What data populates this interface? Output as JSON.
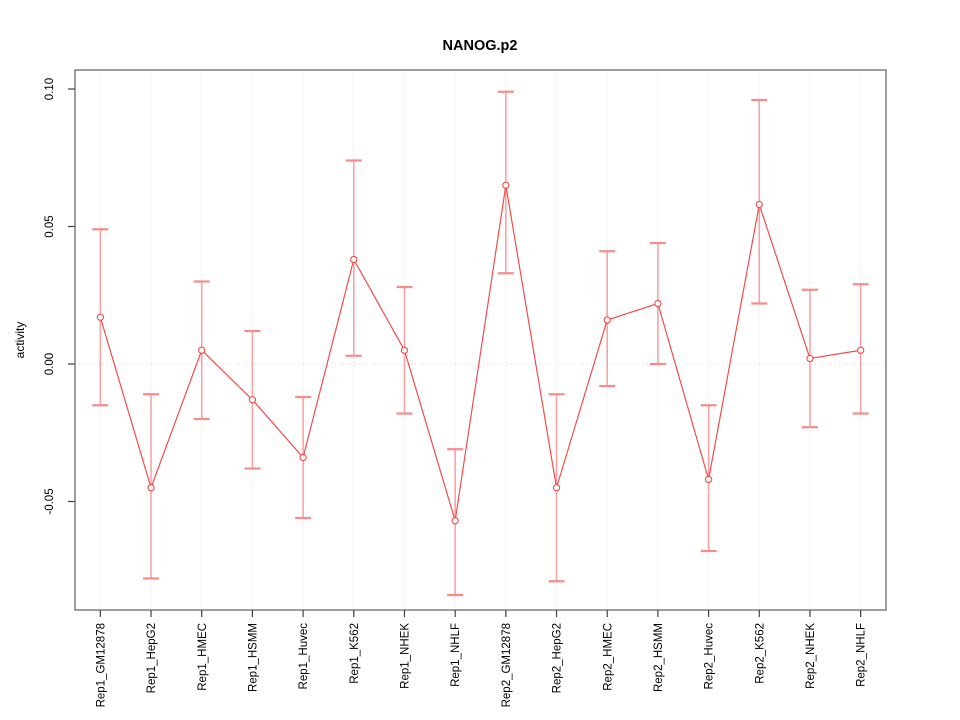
{
  "chart_data": {
    "type": "line",
    "title": "NANOG.p2",
    "xlabel": "",
    "ylabel": "activity",
    "categories": [
      "Rep1_GM12878",
      "Rep1_HepG2",
      "Rep1_HMEC",
      "Rep1_HSMM",
      "Rep1_Huvec",
      "Rep1_K562",
      "Rep1_NHEK",
      "Rep1_NHLF",
      "Rep2_GM12878",
      "Rep2_HepG2",
      "Rep2_HMEC",
      "Rep2_HSMM",
      "Rep2_Huvec",
      "Rep2_K562",
      "Rep2_NHEK",
      "Rep2_NHLF"
    ],
    "series": [
      {
        "name": "activity",
        "values": [
          0.017,
          -0.045,
          0.005,
          -0.013,
          -0.034,
          0.038,
          0.005,
          -0.057,
          0.065,
          -0.045,
          0.016,
          0.022,
          -0.042,
          0.058,
          0.002,
          0.005
        ],
        "ci_low": [
          -0.015,
          -0.078,
          -0.02,
          -0.038,
          -0.056,
          0.003,
          -0.018,
          -0.084,
          0.033,
          -0.079,
          -0.008,
          0.0,
          -0.068,
          0.022,
          -0.023,
          -0.018
        ],
        "ci_high": [
          0.049,
          -0.011,
          0.03,
          0.012,
          -0.012,
          0.074,
          0.028,
          -0.031,
          0.099,
          -0.011,
          0.041,
          0.044,
          -0.015,
          0.096,
          0.027,
          0.029
        ]
      }
    ],
    "ylim": [
      -0.0895,
      0.1069
    ],
    "yticks": [
      -0.05,
      0,
      0.05,
      0.1
    ],
    "ytick_labels": [
      "-0.05",
      "0.00",
      "0.05",
      "0.10"
    ],
    "grid": {
      "vertical": "dotted",
      "horizontal": "zero-line-only"
    },
    "legend": "none",
    "point_style": "open-circle",
    "error_bars": true,
    "colors": {
      "line": "#F04C4C",
      "point": "#F04C4C",
      "error_bar": "#F9A2A2",
      "error_cap": "#F68D8D",
      "grid": "#D9D9D9",
      "frame": "#7F7F7F",
      "tick": "#404040",
      "text": "#000000"
    }
  }
}
